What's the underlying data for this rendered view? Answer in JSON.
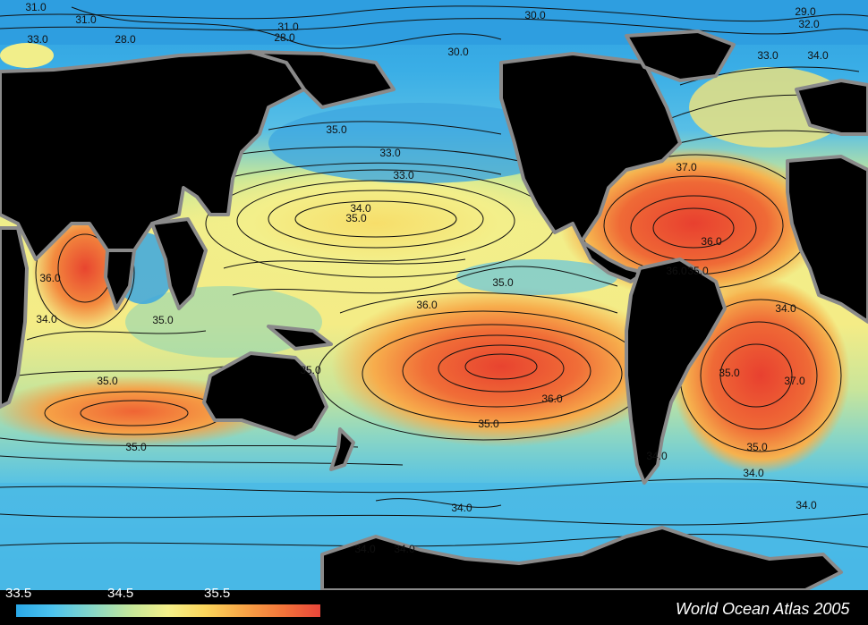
{
  "credit": "World Ocean Atlas 2005",
  "colorbar": {
    "ticks": [
      "33.5",
      "34.5",
      "35.5"
    ],
    "colors": [
      "#2aa8e8",
      "#4cc3ee",
      "#86d7c8",
      "#c6e79a",
      "#f4f08a",
      "#fbd65c",
      "#f8a446",
      "#f2733a",
      "#e8463a"
    ]
  },
  "colors": {
    "ocean_low": "#3aaee6",
    "ocean_mid": "#f3ef8a",
    "ocean_high": "#e94c30",
    "land": "#000000",
    "coast": "#8a8a8a",
    "contour": "#111111"
  },
  "contour_labels": [
    "31.0",
    "31.0",
    "33.0",
    "28.0",
    "31.0",
    "28.0",
    "30.0",
    "30.0",
    "29.0",
    "32.0",
    "33.0",
    "34.0",
    "35.0",
    "33.0",
    "33.0",
    "34.0",
    "35.0",
    "36.0",
    "37.0",
    "36.0",
    "35.0",
    "34.0",
    "35.0",
    "36.0",
    "34.0",
    "35.0",
    "35.0",
    "35.0",
    "37.0",
    "36.0",
    "35.0",
    "35.0",
    "36.0",
    "35.0",
    "35.0",
    "34.0",
    "34.0",
    "34.0",
    "34.0",
    "34.0",
    "34.0"
  ]
}
